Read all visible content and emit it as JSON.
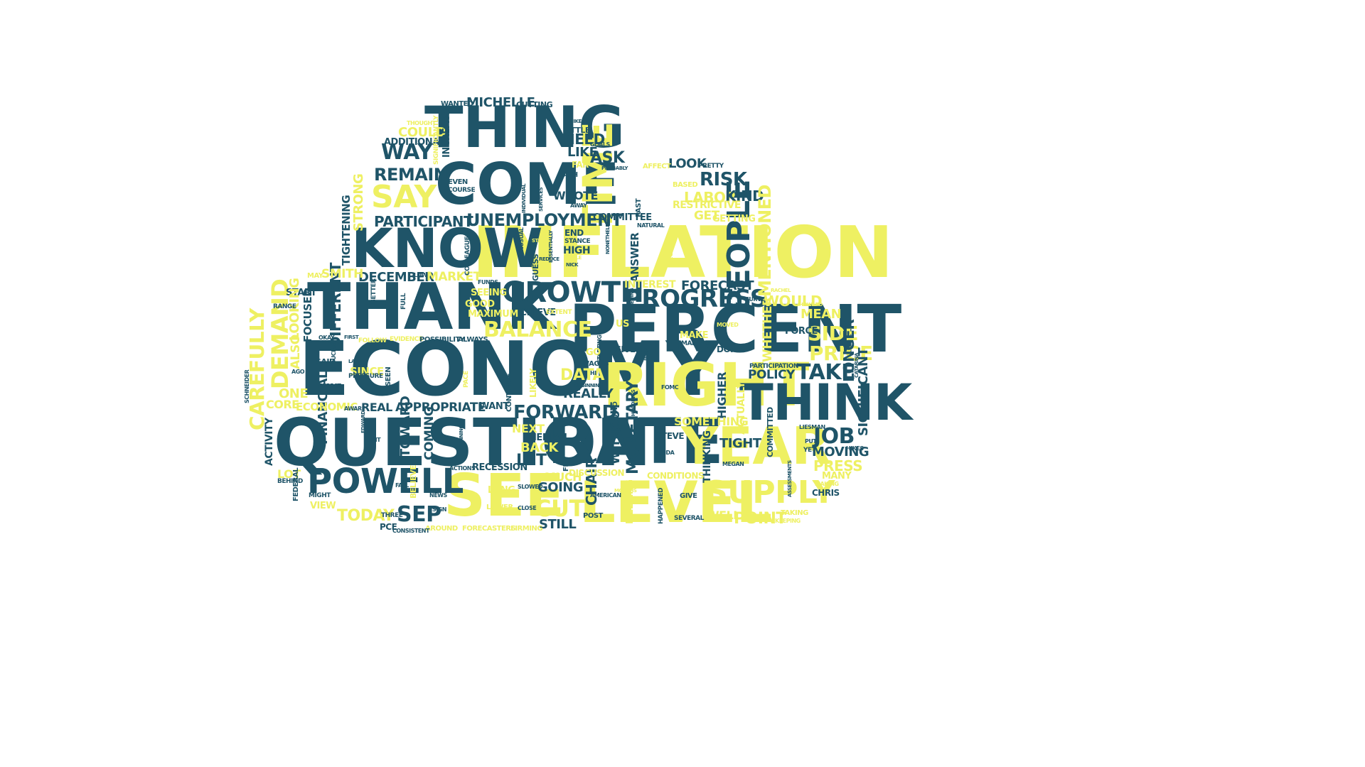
{
  "colors": {
    "dark": "#1f5468",
    "yellow": "#eef062",
    "background": "#ffffff"
  },
  "words": [
    {
      "text": "ECONOMY",
      "c": "dark"
    },
    {
      "text": "INFLATION",
      "c": "yellow"
    },
    {
      "text": "PERCENT",
      "c": "dark"
    },
    {
      "text": "QUESTION",
      "c": "dark"
    },
    {
      "text": "THANK",
      "c": "dark"
    },
    {
      "text": "RATE",
      "c": "dark"
    },
    {
      "text": "RIGHT",
      "c": "yellow"
    },
    {
      "text": "THING",
      "c": "dark"
    },
    {
      "text": "COME",
      "c": "dark"
    },
    {
      "text": "KNOW",
      "c": "dark"
    },
    {
      "text": "THINK",
      "c": "dark"
    },
    {
      "text": "SEE",
      "c": "yellow"
    },
    {
      "text": "LEVEL",
      "c": "yellow"
    },
    {
      "text": "YEAR",
      "c": "yellow"
    },
    {
      "text": "TIME",
      "c": "yellow"
    },
    {
      "text": "POWELL",
      "c": "dark"
    },
    {
      "text": "GROWTH",
      "c": "dark"
    },
    {
      "text": "PEOPLE",
      "c": "dark"
    },
    {
      "text": "SUPPLY",
      "c": "yellow"
    },
    {
      "text": "PROGRESS",
      "c": "dark"
    },
    {
      "text": "UNEMPLOYMENT",
      "c": "dark"
    },
    {
      "text": "PARTICIPANT",
      "c": "dark"
    },
    {
      "text": "SAY",
      "c": "yellow"
    },
    {
      "text": "WAY",
      "c": "dark"
    },
    {
      "text": "REMAIN",
      "c": "dark"
    },
    {
      "text": "BALANCE",
      "c": "yellow"
    },
    {
      "text": "DEMAND",
      "c": "yellow"
    },
    {
      "text": "CAREFULLY",
      "c": "yellow"
    },
    {
      "text": "DIFFERENT",
      "c": "dark"
    },
    {
      "text": "FINANCIAL",
      "c": "dark"
    },
    {
      "text": "FORWARD",
      "c": "dark"
    },
    {
      "text": "APPROPRIATE",
      "c": "dark"
    },
    {
      "text": "DECEMBER",
      "c": "dark"
    },
    {
      "text": "TAKE",
      "c": "dark"
    },
    {
      "text": "SIDE",
      "c": "yellow"
    },
    {
      "text": "PRICE",
      "c": "yellow"
    },
    {
      "text": "JOB",
      "c": "dark"
    },
    {
      "text": "POLICY",
      "c": "dark"
    },
    {
      "text": "TIGHT",
      "c": "dark"
    },
    {
      "text": "RISK",
      "c": "dark"
    },
    {
      "text": "LABOR",
      "c": "yellow"
    },
    {
      "text": "KIND",
      "c": "dark"
    },
    {
      "text": "LOOK",
      "c": "dark"
    },
    {
      "text": "FORECAST",
      "c": "dark"
    },
    {
      "text": "MENTIONED",
      "c": "yellow"
    },
    {
      "text": "CUT",
      "c": "yellow"
    },
    {
      "text": "SEP",
      "c": "dark"
    },
    {
      "text": "TODAY",
      "c": "yellow"
    },
    {
      "text": "POINT",
      "c": "yellow"
    },
    {
      "text": "PRESS",
      "c": "yellow"
    },
    {
      "text": "MOVING",
      "c": "dark"
    },
    {
      "text": "SIGNIFICANT",
      "c": "dark"
    },
    {
      "text": "LONGER",
      "c": "dark"
    },
    {
      "text": "MEAN",
      "c": "yellow"
    },
    {
      "text": "WOULD",
      "c": "yellow"
    },
    {
      "text": "WHETHER",
      "c": "yellow"
    },
    {
      "text": "FORCE",
      "c": "dark"
    },
    {
      "text": "DATA",
      "c": "yellow"
    },
    {
      "text": "REALLY",
      "c": "dark"
    },
    {
      "text": "LET",
      "c": "dark"
    },
    {
      "text": "GOING",
      "c": "dark"
    },
    {
      "text": "STILL",
      "c": "dark"
    },
    {
      "text": "CHAIR",
      "c": "dark"
    },
    {
      "text": "MONETARY",
      "c": "dark"
    },
    {
      "text": "WITHOUT",
      "c": "dark"
    },
    {
      "text": "MEETING",
      "c": "yellow"
    },
    {
      "text": "ANSWER",
      "c": "dark"
    },
    {
      "text": "ASK",
      "c": "dark"
    },
    {
      "text": "NEED",
      "c": "dark"
    },
    {
      "text": "LIKE",
      "c": "dark"
    },
    {
      "text": "MICHELLE",
      "c": "dark"
    },
    {
      "text": "COULD",
      "c": "yellow"
    },
    {
      "text": "ADDITIONAL",
      "c": "dark"
    },
    {
      "text": "INCREASE",
      "c": "dark"
    },
    {
      "text": "STRONG",
      "c": "yellow"
    },
    {
      "text": "TIGHTENING",
      "c": "dark"
    },
    {
      "text": "SMITH",
      "c": "yellow"
    },
    {
      "text": "MARKET",
      "c": "yellow"
    },
    {
      "text": "START",
      "c": "dark"
    },
    {
      "text": "FOCUSED",
      "c": "dark"
    },
    {
      "text": "LOOKING",
      "c": "yellow"
    },
    {
      "text": "ALSO",
      "c": "yellow"
    },
    {
      "text": "SINCE",
      "c": "yellow"
    },
    {
      "text": "ONE",
      "c": "yellow"
    },
    {
      "text": "CORE",
      "c": "yellow"
    },
    {
      "text": "ECONOMIC",
      "c": "yellow"
    },
    {
      "text": "REAL",
      "c": "dark"
    },
    {
      "text": "ACTIVITY",
      "c": "dark"
    },
    {
      "text": "LOT",
      "c": "yellow"
    },
    {
      "text": "VIEW",
      "c": "yellow"
    },
    {
      "text": "COMING",
      "c": "dark"
    },
    {
      "text": "TOWARD",
      "c": "dark"
    },
    {
      "text": "RECESSION",
      "c": "dark"
    },
    {
      "text": "BACK",
      "c": "yellow"
    },
    {
      "text": "NEXT",
      "c": "yellow"
    },
    {
      "text": "MEDIAN",
      "c": "dark"
    },
    {
      "text": "MUCH",
      "c": "yellow"
    },
    {
      "text": "LONG",
      "c": "yellow"
    },
    {
      "text": "ACHIEVE",
      "c": "dark"
    },
    {
      "text": "MAXIMUM",
      "c": "yellow"
    },
    {
      "text": "GOOD",
      "c": "yellow"
    },
    {
      "text": "SEEING",
      "c": "yellow"
    },
    {
      "text": "INTEREST",
      "c": "yellow"
    },
    {
      "text": "HIGH",
      "c": "dark"
    },
    {
      "text": "END",
      "c": "dark"
    },
    {
      "text": "COMMITTEE",
      "c": "dark"
    },
    {
      "text": "WROTE",
      "c": "dark"
    },
    {
      "text": "GET",
      "c": "yellow"
    },
    {
      "text": "GETTING",
      "c": "yellow"
    },
    {
      "text": "RESTRICTIVE",
      "c": "yellow"
    },
    {
      "text": "HIGHER",
      "c": "dark"
    },
    {
      "text": "SOMETHING",
      "c": "yellow"
    },
    {
      "text": "ACTUALLY",
      "c": "yellow"
    },
    {
      "text": "THINKING",
      "c": "dark"
    },
    {
      "text": "WELL",
      "c": "yellow"
    },
    {
      "text": "CHRIS",
      "c": "dark"
    },
    {
      "text": "MANY",
      "c": "yellow"
    },
    {
      "text": "COMMITTED",
      "c": "dark"
    },
    {
      "text": "CONDITIONS",
      "c": "yellow"
    },
    {
      "text": "MAKE",
      "c": "yellow"
    },
    {
      "text": "DONE",
      "c": "dark"
    },
    {
      "text": "GIVEN",
      "c": "dark"
    },
    {
      "text": "STEVE",
      "c": "dark"
    },
    {
      "text": "WANTED",
      "c": "dark"
    },
    {
      "text": "CUTTING",
      "c": "dark"
    },
    {
      "text": "LITTLE",
      "c": "dark"
    },
    {
      "text": "FAR",
      "c": "yellow"
    },
    {
      "text": "PATH",
      "c": "dark"
    },
    {
      "text": "FORECASTERS",
      "c": "yellow"
    },
    {
      "text": "FIRMING",
      "c": "yellow"
    },
    {
      "text": "AROUND",
      "c": "yellow"
    },
    {
      "text": "PCE",
      "c": "dark"
    },
    {
      "text": "WANT",
      "c": "dark"
    },
    {
      "text": "EVIDENCE",
      "c": "yellow"
    },
    {
      "text": "POSSIBILITY",
      "c": "dark"
    },
    {
      "text": "ALWAYS",
      "c": "dark"
    },
    {
      "text": "FOLLOW",
      "c": "yellow"
    },
    {
      "text": "PARTICIPATION",
      "c": "dark"
    },
    {
      "text": "GUESS",
      "c": "dark"
    },
    {
      "text": "PAST",
      "c": "dark"
    },
    {
      "text": "PRETTY",
      "c": "dark"
    },
    {
      "text": "BASED",
      "c": "yellow"
    },
    {
      "text": "AFFECT",
      "c": "yellow"
    },
    {
      "text": "SAID",
      "c": "dark"
    },
    {
      "text": "RANGE",
      "c": "dark"
    },
    {
      "text": "MAY",
      "c": "yellow"
    },
    {
      "text": "FEDERAL",
      "c": "dark"
    },
    {
      "text": "MIGHT",
      "c": "dark"
    },
    {
      "text": "BEHIND",
      "c": "dark"
    },
    {
      "text": "THREE",
      "c": "dark"
    },
    {
      "text": "SIGN",
      "c": "dark"
    },
    {
      "text": "CLOSE",
      "c": "dark"
    },
    {
      "text": "LOWER",
      "c": "yellow"
    },
    {
      "text": "SLOWED",
      "c": "dark"
    },
    {
      "text": "POST",
      "c": "dark"
    },
    {
      "text": "FED",
      "c": "dark"
    },
    {
      "text": "HAPPENED",
      "c": "dark"
    },
    {
      "text": "SEVERAL",
      "c": "dark"
    },
    {
      "text": "GIVE",
      "c": "dark"
    },
    {
      "text": "TAKING",
      "c": "yellow"
    },
    {
      "text": "MAKING",
      "c": "yellow"
    },
    {
      "text": "HIKES",
      "c": "dark"
    },
    {
      "text": "YET",
      "c": "dark"
    },
    {
      "text": "GOALS",
      "c": "dark"
    },
    {
      "text": "PROBABLY",
      "c": "dark"
    },
    {
      "text": "BELIEVE",
      "c": "yellow"
    },
    {
      "text": "DISCUSSION",
      "c": "yellow"
    },
    {
      "text": "TWO",
      "c": "dark"
    },
    {
      "text": "COLLEAGUES",
      "c": "dark"
    },
    {
      "text": "REDUCING",
      "c": "dark"
    },
    {
      "text": "PRESSURE",
      "c": "dark"
    },
    {
      "text": "SEEN",
      "c": "dark"
    },
    {
      "text": "CONTINUE",
      "c": "dark"
    },
    {
      "text": "LIKELY",
      "c": "yellow"
    },
    {
      "text": "FULL",
      "c": "dark"
    },
    {
      "text": "BETTER",
      "c": "dark"
    },
    {
      "text": "EVEN",
      "c": "dark"
    },
    {
      "text": "COURSE",
      "c": "dark"
    },
    {
      "text": "THOUGHT",
      "c": "yellow"
    },
    {
      "text": "SCHNEIDER",
      "c": "dark"
    },
    {
      "text": "AGO",
      "c": "dark"
    },
    {
      "text": "EXPECT",
      "c": "dark"
    },
    {
      "text": "NEWS",
      "c": "dark"
    },
    {
      "text": "FUNDS",
      "c": "dark"
    },
    {
      "text": "FOMC",
      "c": "dark"
    },
    {
      "text": "GUIDA",
      "c": "dark"
    },
    {
      "text": "MEGAN",
      "c": "dark"
    },
    {
      "text": "BEGINNING",
      "c": "dark"
    },
    {
      "text": "AMERICAN",
      "c": "dark"
    },
    {
      "text": "OKAY",
      "c": "dark"
    },
    {
      "text": "FIRST",
      "c": "dark"
    },
    {
      "text": "LAGS",
      "c": "dark"
    },
    {
      "text": "UNUSUAL",
      "c": "dark"
    },
    {
      "text": "ESSENTIALLY",
      "c": "dark"
    },
    {
      "text": "NONETHELESS",
      "c": "dark"
    },
    {
      "text": "NATURAL",
      "c": "dark"
    },
    {
      "text": "STARTING",
      "c": "dark"
    },
    {
      "text": "JEAN",
      "c": "dark"
    },
    {
      "text": "HOLDINGS",
      "c": "dark"
    },
    {
      "text": "WAGES",
      "c": "dark"
    },
    {
      "text": "EDWARD",
      "c": "dark"
    },
    {
      "text": "AWARE",
      "c": "dark"
    },
    {
      "text": "BIT",
      "c": "dark"
    },
    {
      "text": "RUNNING",
      "c": "dark"
    },
    {
      "text": "INDIVIDUAL",
      "c": "dark"
    },
    {
      "text": "SERVICES",
      "c": "dark"
    },
    {
      "text": "AWAY",
      "c": "dark"
    },
    {
      "text": "STANCE",
      "c": "dark"
    },
    {
      "text": "HI",
      "c": "dark"
    },
    {
      "text": "GO",
      "c": "yellow"
    },
    {
      "text": "US",
      "c": "yellow"
    },
    {
      "text": "EXTENT",
      "c": "yellow"
    },
    {
      "text": "PACE",
      "c": "yellow"
    },
    {
      "text": "MOVED",
      "c": "yellow"
    },
    {
      "text": "MANDATE",
      "c": "dark"
    },
    {
      "text": "CURVE",
      "c": "dark"
    },
    {
      "text": "CATARINA",
      "c": "dark"
    },
    {
      "text": "LIESMAN",
      "c": "dark"
    },
    {
      "text": "ASSESSMENTS",
      "c": "dark"
    },
    {
      "text": "PUT",
      "c": "dark"
    },
    {
      "text": "KEEPING",
      "c": "yellow"
    },
    {
      "text": "CONSISTENT",
      "c": "dark"
    },
    {
      "text": "ACTIONS",
      "c": "dark"
    },
    {
      "text": "FALL",
      "c": "dark"
    },
    {
      "text": "LOW",
      "c": "dark"
    },
    {
      "text": "REDUCE",
      "c": "dark"
    },
    {
      "text": "PROCEEDING",
      "c": "dark"
    },
    {
      "text": "BECOME",
      "c": "yellow"
    },
    {
      "text": "MONTHS",
      "c": "yellow"
    },
    {
      "text": "SOMEWHAT",
      "c": "yellow"
    },
    {
      "text": "HOWARD",
      "c": "yellow"
    },
    {
      "text": "RACHEL",
      "c": "yellow"
    },
    {
      "text": "MIKE",
      "c": "dark"
    },
    {
      "text": "NICK",
      "c": "dark"
    },
    {
      "text": "SIGNIFICANTLY",
      "c": "yellow"
    },
    {
      "text": "TABLE",
      "c": "yellow"
    },
    {
      "text": "STABLE",
      "c": "yellow"
    }
  ]
}
